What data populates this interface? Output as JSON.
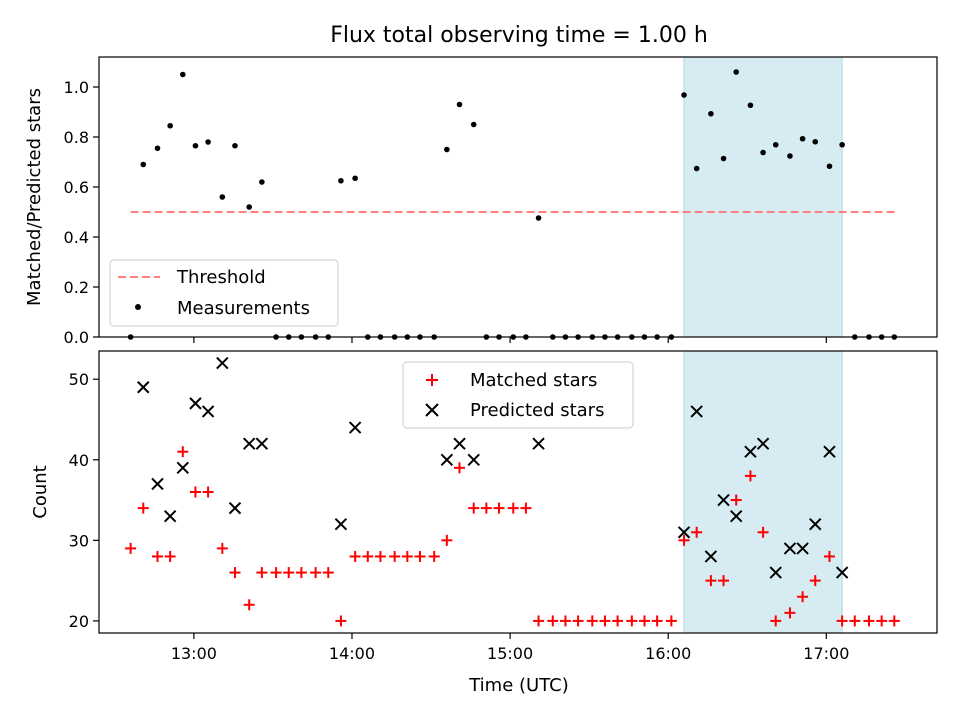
{
  "chart_data": [
    {
      "type": "scatter",
      "title": "Flux total observing time = 1.00 h",
      "ylabel": "Matched/Predicted stars",
      "xlabel": "",
      "ylim": [
        0,
        1.12
      ],
      "yticks": [
        0.0,
        0.2,
        0.4,
        0.6,
        0.8,
        1.0
      ],
      "ytick_labels": [
        "0.0",
        "0.2",
        "0.4",
        "0.6",
        "0.8",
        "1.0"
      ],
      "shaded_span": [
        16.1,
        17.1
      ],
      "threshold": {
        "name": "Threshold",
        "value": 0.5,
        "x_range": [
          12.6,
          17.45
        ],
        "color": "#ff7f7f"
      },
      "series": [
        {
          "name": "Measurements",
          "color": "#000000",
          "points": [
            [
              12.6,
              0.0
            ],
            [
              12.68,
              0.69
            ],
            [
              12.77,
              0.755
            ],
            [
              12.85,
              0.845
            ],
            [
              12.93,
              1.05
            ],
            [
              13.01,
              0.765
            ],
            [
              13.09,
              0.78
            ],
            [
              13.18,
              0.56
            ],
            [
              13.26,
              0.765
            ],
            [
              13.35,
              0.52
            ],
            [
              13.43,
              0.62
            ],
            [
              13.52,
              0.0
            ],
            [
              13.6,
              0.0
            ],
            [
              13.68,
              0.0
            ],
            [
              13.77,
              0.0
            ],
            [
              13.85,
              0.0
            ],
            [
              13.93,
              0.625
            ],
            [
              14.02,
              0.635
            ],
            [
              14.1,
              0.0
            ],
            [
              14.18,
              0.0
            ],
            [
              14.27,
              0.0
            ],
            [
              14.35,
              0.0
            ],
            [
              14.43,
              0.0
            ],
            [
              14.52,
              0.0
            ],
            [
              14.6,
              0.75
            ],
            [
              14.68,
              0.93
            ],
            [
              14.77,
              0.85
            ],
            [
              14.85,
              0.0
            ],
            [
              14.93,
              0.0
            ],
            [
              15.02,
              0.0
            ],
            [
              15.1,
              0.0
            ],
            [
              15.18,
              0.476
            ],
            [
              15.27,
              0.0
            ],
            [
              15.35,
              0.0
            ],
            [
              15.43,
              0.0
            ],
            [
              15.52,
              0.0
            ],
            [
              15.6,
              0.0
            ],
            [
              15.68,
              0.0
            ],
            [
              15.77,
              0.0
            ],
            [
              15.85,
              0.0
            ],
            [
              15.93,
              0.0
            ],
            [
              16.02,
              0.0
            ],
            [
              16.1,
              0.968
            ],
            [
              16.18,
              0.674
            ],
            [
              16.27,
              0.893
            ],
            [
              16.35,
              0.714
            ],
            [
              16.43,
              1.06
            ],
            [
              16.52,
              0.927
            ],
            [
              16.6,
              0.738
            ],
            [
              16.68,
              0.769
            ],
            [
              16.77,
              0.724
            ],
            [
              16.85,
              0.793
            ],
            [
              16.93,
              0.781
            ],
            [
              17.02,
              0.683
            ],
            [
              17.1,
              0.769
            ],
            [
              17.18,
              0.0
            ],
            [
              17.27,
              0.0
            ],
            [
              17.35,
              0.0
            ],
            [
              17.43,
              0.0
            ]
          ]
        }
      ],
      "legend": {
        "location": "lower-left",
        "entries": [
          "Threshold",
          "Measurements"
        ]
      }
    },
    {
      "type": "scatter",
      "title": "",
      "xlabel": "Time (UTC)",
      "ylabel": "Count",
      "xlim": [
        12.4,
        17.7
      ],
      "ylim": [
        18.5,
        53.5
      ],
      "xticks": [
        13,
        14,
        15,
        16,
        17
      ],
      "xtick_labels": [
        "13:00",
        "14:00",
        "15:00",
        "16:00",
        "17:00"
      ],
      "yticks": [
        20,
        30,
        40,
        50
      ],
      "ytick_labels": [
        "20",
        "30",
        "40",
        "50"
      ],
      "shaded_span": [
        16.1,
        17.1
      ],
      "series": [
        {
          "name": "Matched stars",
          "marker": "plus",
          "color": "#ff0000",
          "points": [
            [
              12.6,
              29
            ],
            [
              12.68,
              34
            ],
            [
              12.77,
              28
            ],
            [
              12.85,
              28
            ],
            [
              12.93,
              41
            ],
            [
              13.01,
              36
            ],
            [
              13.09,
              36
            ],
            [
              13.18,
              29
            ],
            [
              13.26,
              26
            ],
            [
              13.35,
              22
            ],
            [
              13.43,
              26
            ],
            [
              13.52,
              26
            ],
            [
              13.6,
              26
            ],
            [
              13.68,
              26
            ],
            [
              13.77,
              26
            ],
            [
              13.85,
              26
            ],
            [
              13.93,
              20
            ],
            [
              14.02,
              28
            ],
            [
              14.1,
              28
            ],
            [
              14.18,
              28
            ],
            [
              14.27,
              28
            ],
            [
              14.35,
              28
            ],
            [
              14.43,
              28
            ],
            [
              14.52,
              28
            ],
            [
              14.6,
              30
            ],
            [
              14.68,
              39
            ],
            [
              14.77,
              34
            ],
            [
              14.85,
              34
            ],
            [
              14.93,
              34
            ],
            [
              15.02,
              34
            ],
            [
              15.1,
              34
            ],
            [
              15.18,
              20
            ],
            [
              15.27,
              20
            ],
            [
              15.35,
              20
            ],
            [
              15.43,
              20
            ],
            [
              15.52,
              20
            ],
            [
              15.6,
              20
            ],
            [
              15.68,
              20
            ],
            [
              15.77,
              20
            ],
            [
              15.85,
              20
            ],
            [
              15.93,
              20
            ],
            [
              16.02,
              20
            ],
            [
              16.1,
              30
            ],
            [
              16.18,
              31
            ],
            [
              16.27,
              25
            ],
            [
              16.35,
              25
            ],
            [
              16.43,
              35
            ],
            [
              16.52,
              38
            ],
            [
              16.6,
              31
            ],
            [
              16.68,
              20
            ],
            [
              16.77,
              21
            ],
            [
              16.85,
              23
            ],
            [
              16.93,
              25
            ],
            [
              17.02,
              28
            ],
            [
              17.1,
              20
            ],
            [
              17.18,
              20
            ],
            [
              17.27,
              20
            ],
            [
              17.35,
              20
            ],
            [
              17.43,
              20
            ]
          ]
        },
        {
          "name": "Predicted stars",
          "marker": "x",
          "color": "#000000",
          "points": [
            [
              12.68,
              49
            ],
            [
              12.77,
              37
            ],
            [
              12.85,
              33
            ],
            [
              12.93,
              39
            ],
            [
              13.01,
              47
            ],
            [
              13.09,
              46
            ],
            [
              13.18,
              52
            ],
            [
              13.26,
              34
            ],
            [
              13.35,
              42
            ],
            [
              13.43,
              42
            ],
            [
              13.93,
              32
            ],
            [
              14.02,
              44
            ],
            [
              14.6,
              40
            ],
            [
              14.68,
              42
            ],
            [
              14.77,
              40
            ],
            [
              15.18,
              42
            ],
            [
              16.1,
              31
            ],
            [
              16.18,
              46
            ],
            [
              16.27,
              28
            ],
            [
              16.35,
              35
            ],
            [
              16.43,
              33
            ],
            [
              16.52,
              41
            ],
            [
              16.6,
              42
            ],
            [
              16.68,
              26
            ],
            [
              16.77,
              29
            ],
            [
              16.85,
              29
            ],
            [
              16.93,
              32
            ],
            [
              17.02,
              41
            ],
            [
              17.1,
              26
            ]
          ]
        }
      ],
      "legend": {
        "location": "upper-center",
        "entries": [
          "Matched stars",
          "Predicted stars"
        ]
      }
    }
  ]
}
